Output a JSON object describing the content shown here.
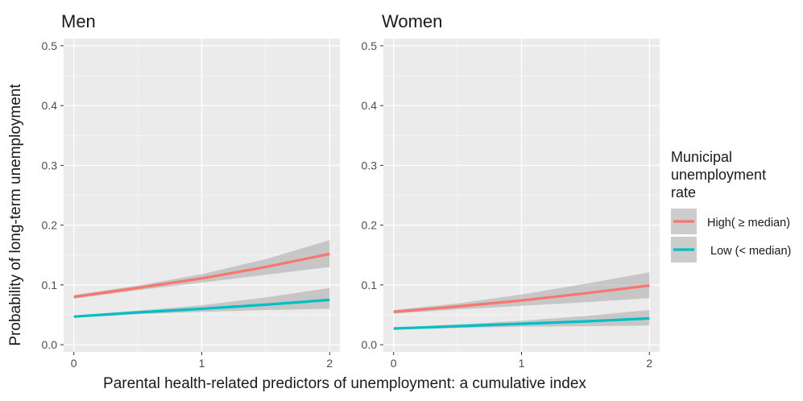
{
  "chart_data": {
    "type": "line",
    "xlabel": "Parental health-related predictors of unemployment: a cumulative index",
    "ylabel": "Probability of long-term unemployment",
    "xlim": [
      -0.08,
      2.08
    ],
    "ylim": [
      -0.012,
      0.512
    ],
    "xticks": [
      0,
      1,
      2
    ],
    "yticks": [
      0.0,
      0.1,
      0.2,
      0.3,
      0.4,
      0.5
    ],
    "xtick_labels": [
      "0",
      "1",
      "2"
    ],
    "ytick_labels": [
      "0.0",
      "0.1",
      "0.2",
      "0.3",
      "0.4",
      "0.5"
    ],
    "grid": true,
    "legend": {
      "title_lines": [
        "Municipal",
        "unemployment",
        "rate"
      ],
      "placement": "right",
      "entries": [
        {
          "label": "High( ≥ median)",
          "color": "#F8766D"
        },
        {
          "label": "Low (< median)",
          "color": "#00BFC4"
        }
      ]
    },
    "colors": {
      "panel_bg": "#EBEBEB",
      "grid_major": "#FFFFFF",
      "ribbon": "#999999",
      "high": "#F8766D",
      "low": "#00BFC4",
      "tick_text": "#4D4D4D"
    },
    "panels": [
      {
        "title": "Men",
        "series": [
          {
            "name": "High( ≥ median)",
            "x": [
              0,
              0.5,
              1,
              1.5,
              2
            ],
            "y": [
              0.08,
              0.095,
              0.111,
              0.13,
              0.152
            ],
            "lower": [
              0.077,
              0.091,
              0.104,
              0.117,
              0.13
            ],
            "upper": [
              0.083,
              0.099,
              0.118,
              0.143,
              0.175
            ]
          },
          {
            "name": "Low (< median)",
            "x": [
              0,
              0.5,
              1,
              1.5,
              2
            ],
            "y": [
              0.047,
              0.054,
              0.06,
              0.067,
              0.075
            ],
            "lower": [
              0.045,
              0.051,
              0.055,
              0.058,
              0.06
            ],
            "upper": [
              0.049,
              0.057,
              0.066,
              0.079,
              0.095
            ]
          }
        ]
      },
      {
        "title": "Women",
        "series": [
          {
            "name": "High( ≥ median)",
            "x": [
              0,
              0.5,
              1,
              1.5,
              2
            ],
            "y": [
              0.055,
              0.064,
              0.074,
              0.086,
              0.099
            ],
            "lower": [
              0.052,
              0.059,
              0.065,
              0.071,
              0.078
            ],
            "upper": [
              0.058,
              0.069,
              0.084,
              0.102,
              0.121
            ]
          },
          {
            "name": "Low (< median)",
            "x": [
              0,
              0.5,
              1,
              1.5,
              2
            ],
            "y": [
              0.027,
              0.031,
              0.035,
              0.039,
              0.044
            ],
            "lower": [
              0.025,
              0.028,
              0.03,
              0.031,
              0.032
            ],
            "upper": [
              0.029,
              0.034,
              0.04,
              0.048,
              0.058
            ]
          }
        ]
      }
    ]
  }
}
